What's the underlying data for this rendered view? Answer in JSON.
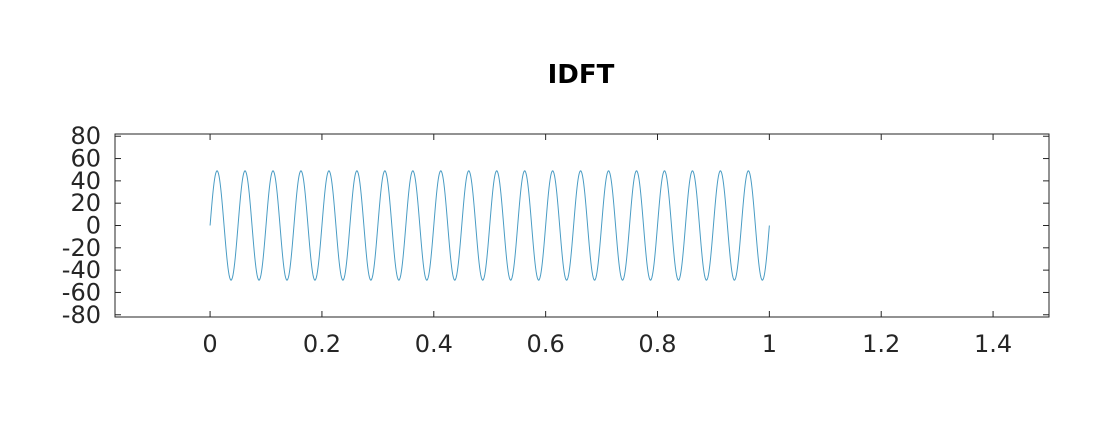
{
  "chart_data": {
    "type": "line",
    "title": "IDFT",
    "xlabel": "",
    "ylabel": "",
    "xlim": [
      -0.17,
      1.5
    ],
    "ylim": [
      -82,
      82
    ],
    "x_ticks": [
      "0",
      "0.2",
      "0.4",
      "0.6",
      "0.8",
      "1",
      "1.2",
      "1.4"
    ],
    "x_tick_values": [
      0,
      0.2,
      0.4,
      0.6,
      0.8,
      1.0,
      1.2,
      1.4
    ],
    "y_ticks": [
      "80",
      "60",
      "40",
      "20",
      "0",
      "-20",
      "-40",
      "-60",
      "-80"
    ],
    "y_tick_values": [
      80,
      60,
      40,
      20,
      0,
      -20,
      -40,
      -60,
      -80
    ],
    "grid": false,
    "series": [
      {
        "color": "#4a9cc4",
        "signal": "sine",
        "amplitude": 49,
        "cycles": 20,
        "x_start": 0,
        "x_end": 1,
        "samples": 1000
      }
    ]
  }
}
